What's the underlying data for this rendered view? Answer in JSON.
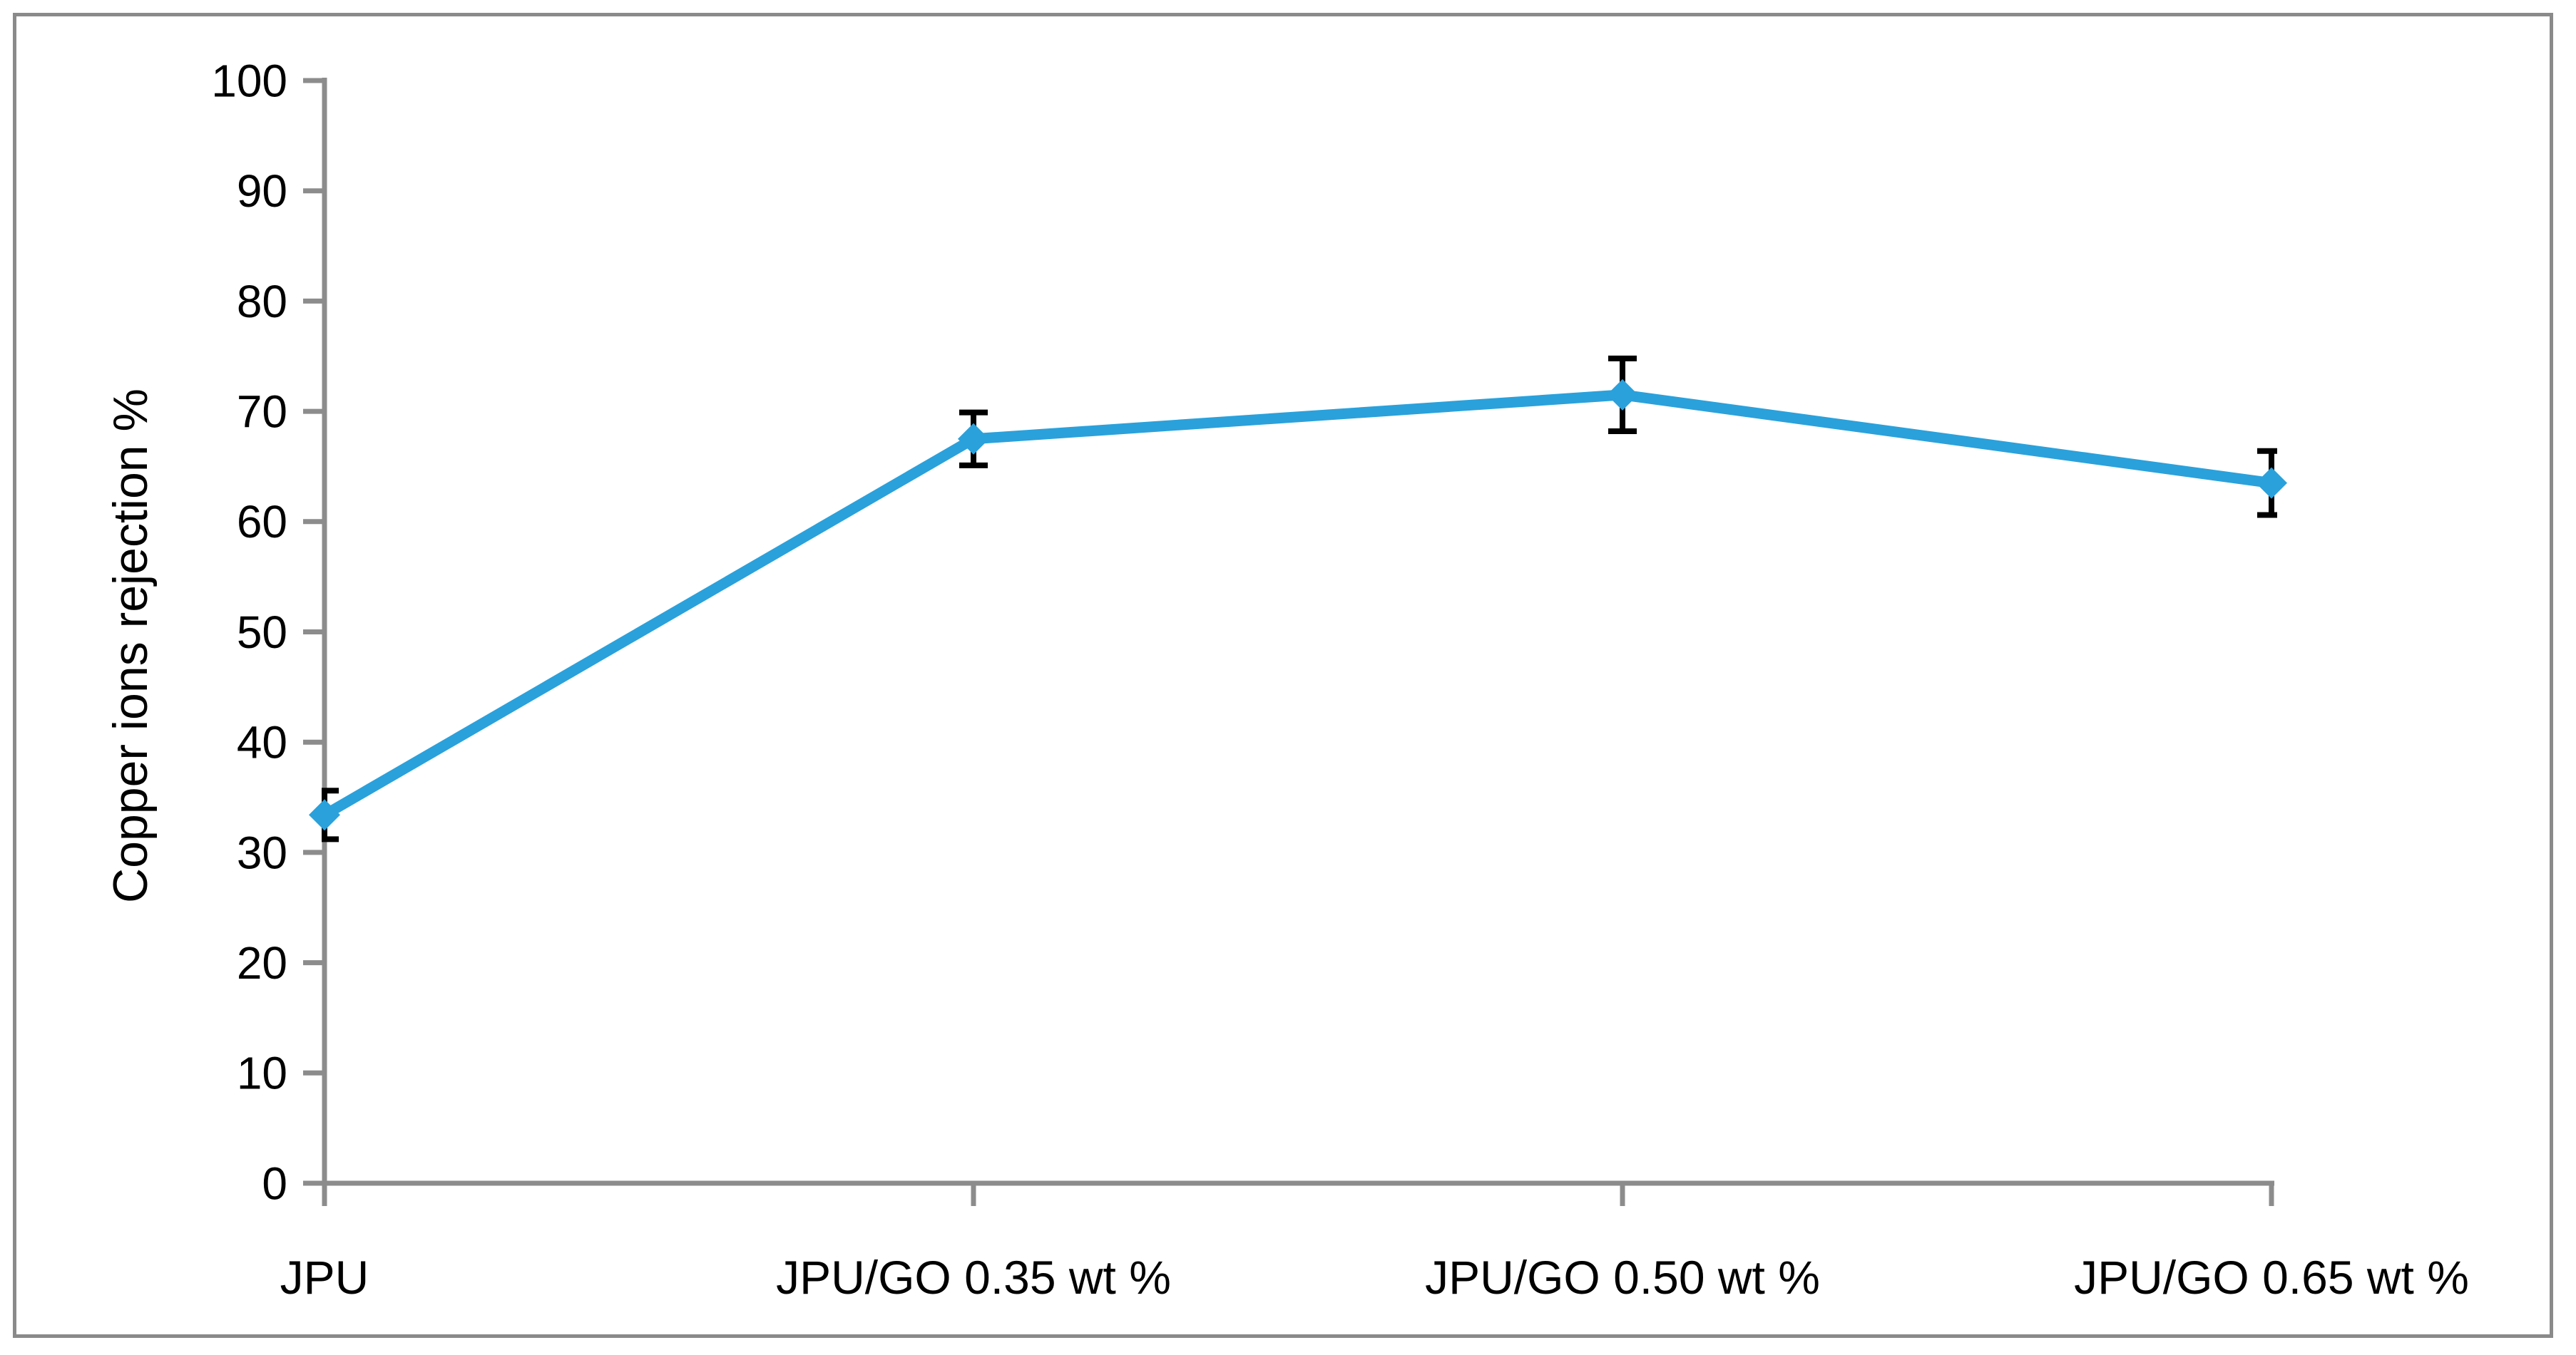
{
  "chart_data": {
    "type": "line",
    "title": "",
    "categories": [
      "JPU",
      "JPU/GO 0.35 wt %",
      "JPU/GO 0.50 wt %",
      "JPU/GO 0.65 wt %"
    ],
    "series": [
      {
        "name": "Copper ions rejection",
        "values": [
          33.4,
          67.5,
          71.5,
          63.5
        ],
        "error_bars": [
          2.2,
          2.4,
          3.3,
          2.9
        ],
        "color": "#2AA1DB",
        "marker": "diamond"
      }
    ],
    "xlabel": "",
    "ylabel": "Copper ions rejection %",
    "ylim": [
      0,
      100
    ],
    "yticks": [
      0,
      10,
      20,
      30,
      40,
      50,
      60,
      70,
      80,
      90,
      100
    ],
    "grid": false,
    "legend": "none",
    "error_bar_color": "#000000",
    "axis_color": "#8C8C8C",
    "border_color": "#8A8A8A"
  }
}
